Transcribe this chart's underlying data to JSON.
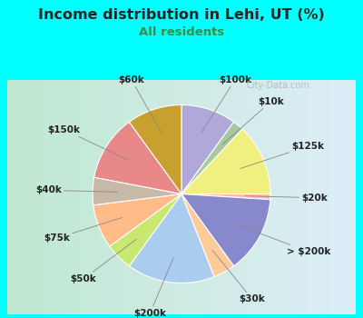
{
  "title": "Income distribution in Lehi, UT (%)",
  "subtitle": "All residents",
  "background_outer": "#00FFFF",
  "background_inner_left": "#c8e8d8",
  "background_inner_right": "#e8f0f8",
  "watermark": "City-Data.com",
  "labels": [
    "$100k",
    "$10k",
    "$125k",
    "$20k",
    "> $200k",
    "$30k",
    "$200k",
    "$50k",
    "$75k",
    "$40k",
    "$150k",
    "$60k"
  ],
  "values": [
    10,
    2,
    13,
    1,
    14,
    4,
    16,
    5,
    8,
    5,
    12,
    10
  ],
  "colors": [
    "#b0a8d8",
    "#a8c8a0",
    "#f0f080",
    "#ffb8b8",
    "#8888cc",
    "#ffcc99",
    "#aaccee",
    "#c8e870",
    "#ffbb88",
    "#c8b8a8",
    "#e88888",
    "#c8a030"
  ],
  "startangle": 90,
  "title_color": "#222222",
  "subtitle_color": "#448844"
}
